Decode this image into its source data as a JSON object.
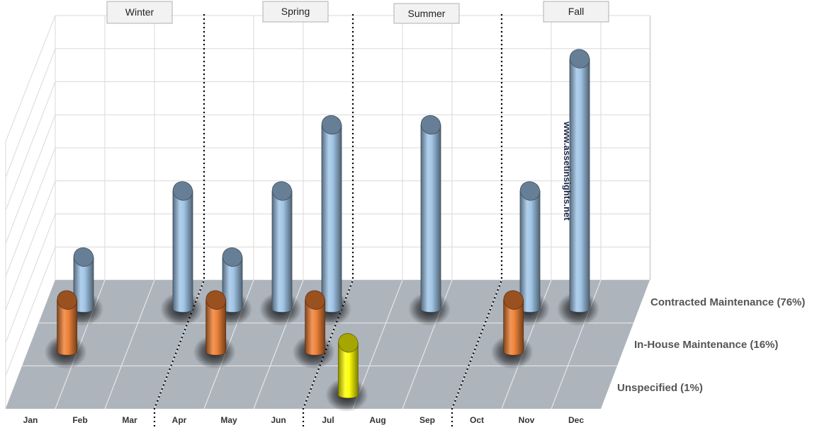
{
  "chart_data": {
    "type": "bar",
    "subtype": "3d-cylinder",
    "categories": [
      "Jan",
      "Feb",
      "Mar",
      "Apr",
      "May",
      "Jun",
      "Jul",
      "Aug",
      "Sep",
      "Oct",
      "Nov",
      "Dec"
    ],
    "series": [
      {
        "name": "Contracted Maintenance (76%)",
        "color": "#9dc3e6",
        "values": [
          1,
          null,
          2,
          1,
          2,
          3,
          null,
          3,
          null,
          2,
          4,
          null
        ]
      },
      {
        "name": "In-House Maintenance (16%)",
        "color": "#ed7d31",
        "values": [
          1,
          null,
          null,
          1,
          null,
          1,
          null,
          null,
          null,
          1,
          null,
          null
        ]
      },
      {
        "name": "Unspecified (1%)",
        "color": "#ffff00",
        "values": [
          null,
          null,
          null,
          null,
          null,
          null,
          1,
          null,
          null,
          null,
          null,
          null
        ]
      }
    ],
    "seasons": [
      "Winter",
      "Spring",
      "Summer",
      "Fall"
    ],
    "watermark": "www.assetinsights.net",
    "grid": true,
    "legend_position": "right (series labels along depth axis)"
  }
}
